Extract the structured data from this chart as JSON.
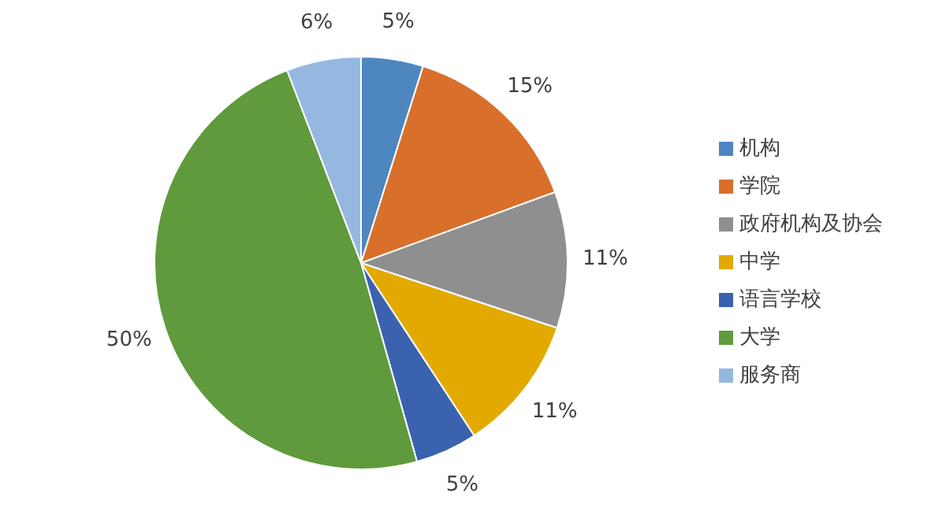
{
  "chart_data": {
    "type": "pie",
    "categories": [
      "机构",
      "学院",
      "政府机构及协会",
      "中学",
      "语言学校",
      "大学",
      "服务商"
    ],
    "values": [
      5,
      15,
      11,
      11,
      5,
      50,
      6
    ],
    "colors": [
      "#4e86c0",
      "#d8702c",
      "#8f8f8f",
      "#e2aa00",
      "#3a62ae",
      "#5f9a3c",
      "#95b8e0"
    ],
    "value_labels": [
      "5%",
      "15%",
      "11%",
      "11%",
      "5%",
      "50%",
      "6%"
    ],
    "legend": "right"
  }
}
